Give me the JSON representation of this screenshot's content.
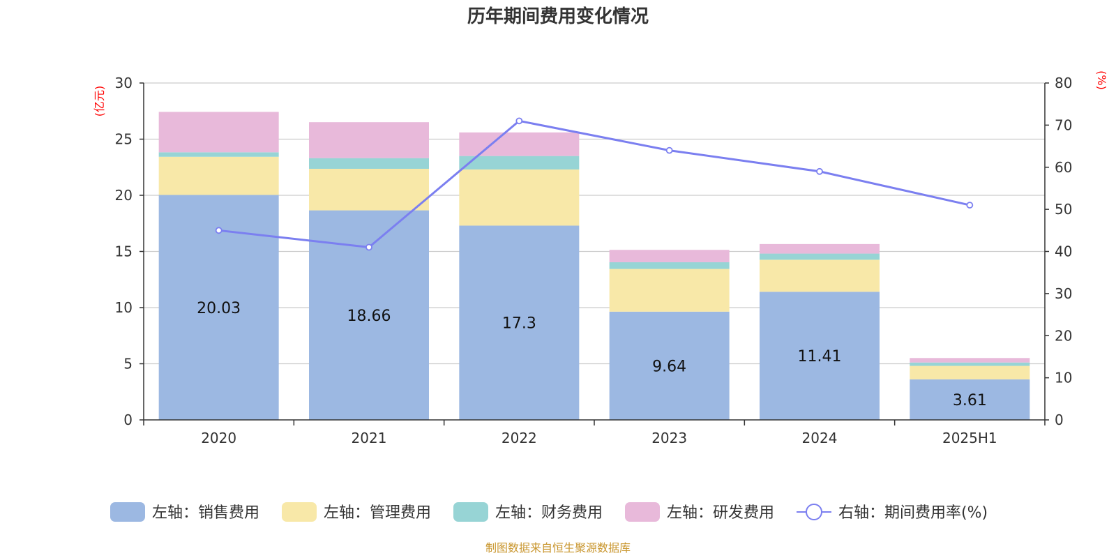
{
  "chart_data": {
    "type": "bar",
    "title": "历年期间费用变化情况",
    "categories": [
      "2020",
      "2021",
      "2022",
      "2023",
      "2024",
      "2025H1"
    ],
    "left_axis": {
      "unit": "(亿元)",
      "ylim": [
        0,
        30
      ],
      "ticks": [
        "0",
        "5",
        "10",
        "15",
        "20",
        "25",
        "30"
      ]
    },
    "right_axis": {
      "unit": "(%)",
      "ylim": [
        0,
        80
      ],
      "ticks": [
        "0",
        "10",
        "20",
        "30",
        "40",
        "50",
        "60",
        "70",
        "80"
      ]
    },
    "stacked": true,
    "series": [
      {
        "name": "左轴：销售费用",
        "axis": "left",
        "color": "#9cb8e2",
        "values": [
          20.03,
          18.66,
          17.3,
          9.64,
          11.41,
          3.61
        ],
        "labels": [
          "20.03",
          "18.66",
          "17.3",
          "9.64",
          "11.41",
          "3.61"
        ]
      },
      {
        "name": "左轴：管理费用",
        "axis": "left",
        "color": "#f8e8a8",
        "values": [
          3.4,
          3.7,
          5.0,
          3.8,
          2.85,
          1.2
        ]
      },
      {
        "name": "左轴：财务费用",
        "axis": "left",
        "color": "#97d4d5",
        "values": [
          0.4,
          0.95,
          1.2,
          0.6,
          0.55,
          0.3
        ]
      },
      {
        "name": "左轴：研发费用",
        "axis": "left",
        "color": "#e8b9da",
        "values": [
          3.6,
          3.2,
          2.1,
          1.1,
          0.85,
          0.4
        ]
      },
      {
        "name": "右轴：期间费用率(%)",
        "axis": "right",
        "type": "line",
        "color": "#7b7ff0",
        "values": [
          45.0,
          41.0,
          71.0,
          64.0,
          59.0,
          51.0
        ]
      }
    ],
    "grid": true,
    "legend_position": "bottom"
  },
  "footer": {
    "source": "制图数据来自恒生聚源数据库"
  }
}
